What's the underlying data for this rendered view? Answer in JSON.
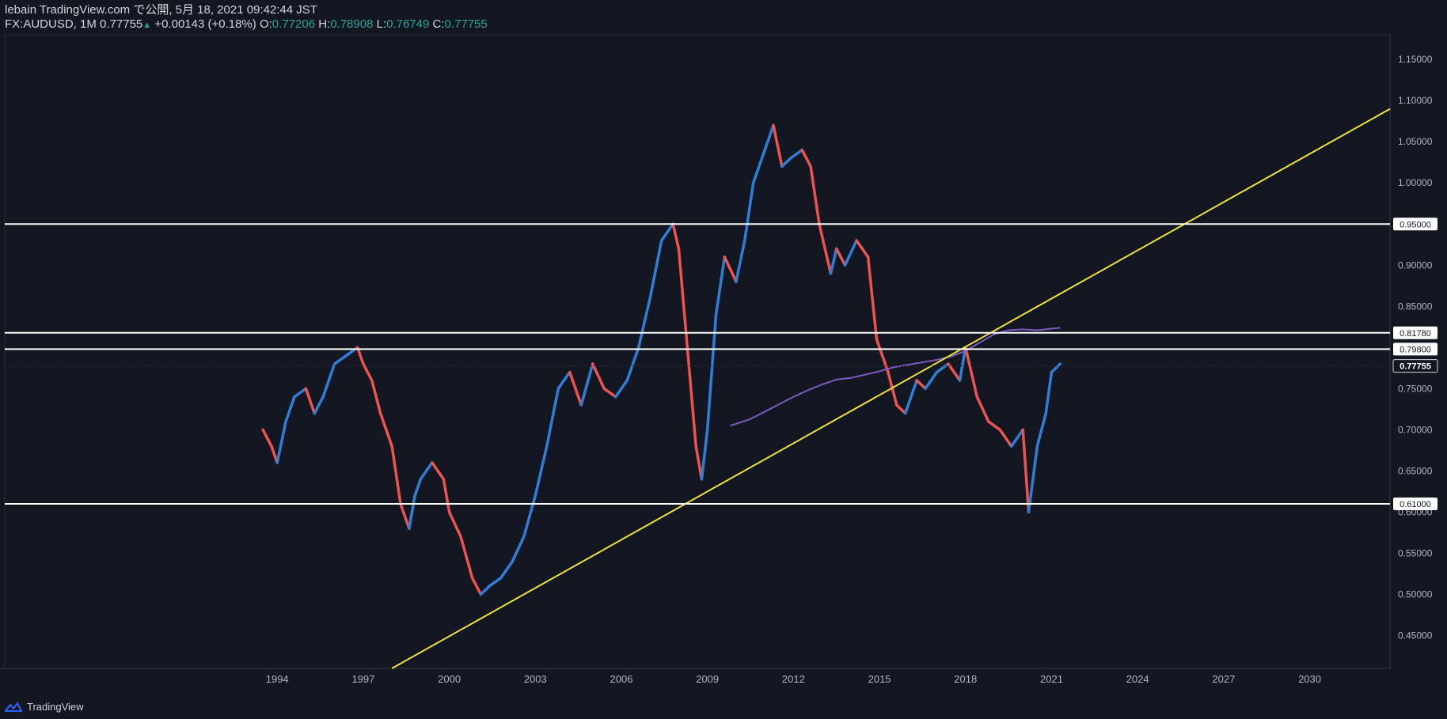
{
  "header": {
    "line1": "lebain TradingView.com で公開, 5月 18, 2021 09:42:44 JST",
    "symbol": "FX:AUDUSD, 1M",
    "last": "0.77755",
    "change_arrow": "▲",
    "change": "+0.00143 (+0.18%)",
    "o_label": "O:",
    "o_value": "0.77206",
    "h_label": "H:",
    "h_value": "0.78908",
    "l_label": "L:",
    "l_value": "0.76749",
    "c_label": "C:",
    "c_value": "0.77755"
  },
  "footer": {
    "brand": "TradingView"
  },
  "colors": {
    "bg": "#131722",
    "up": "#2f7fd6",
    "down": "#ef5350",
    "trend": "#f2e33a",
    "ma": "#7e57c2",
    "level": "#ffffff",
    "text": "#b2b5be"
  },
  "chart_data": {
    "type": "line",
    "title": "",
    "ylim": [
      0.41,
      1.18
    ],
    "xlim": [
      1984.5,
      2032.8
    ],
    "y_ticks": [
      "1.15000",
      "1.10000",
      "1.05000",
      "1.00000",
      "0.95000",
      "0.90000",
      "0.85000",
      "0.80000",
      "0.75000",
      "0.70000",
      "0.65000",
      "0.60000",
      "0.55000",
      "0.50000",
      "0.45000"
    ],
    "x_ticks": [
      "1994",
      "1997",
      "2000",
      "2003",
      "2006",
      "2009",
      "2012",
      "2015",
      "2018",
      "2021",
      "2024",
      "2027",
      "2030"
    ],
    "price_levels": [
      {
        "label": "0.95000",
        "value": 0.95
      },
      {
        "label": "0.81780",
        "value": 0.8178
      },
      {
        "label": "0.79800",
        "value": 0.798
      },
      {
        "label": "0.61000",
        "value": 0.61
      }
    ],
    "last_price": {
      "label": "0.77755",
      "value": 0.77755
    },
    "trendline": {
      "x": [
        1998.0,
        2032.8
      ],
      "y": [
        0.41,
        1.09
      ]
    },
    "series": [
      {
        "type": "close",
        "x": [
          1993.5,
          1993.8,
          1994.0,
          1994.3,
          1994.6,
          1995.0,
          1995.3,
          1995.6,
          1996.0,
          1996.4,
          1996.8,
          1997.0,
          1997.3,
          1997.6,
          1998.0,
          1998.3,
          1998.6,
          1998.8,
          1999.0,
          1999.4,
          1999.8,
          2000.0,
          2000.4,
          2000.8,
          2001.1,
          2001.4,
          2001.8,
          2002.2,
          2002.6,
          2003.0,
          2003.4,
          2003.8,
          2004.2,
          2004.6,
          2005.0,
          2005.4,
          2005.8,
          2006.2,
          2006.6,
          2007.0,
          2007.4,
          2007.8,
          2008.0,
          2008.3,
          2008.6,
          2008.8,
          2009.0,
          2009.3,
          2009.6,
          2010.0,
          2010.3,
          2010.6,
          2011.0,
          2011.3,
          2011.6,
          2011.9,
          2012.3,
          2012.6,
          2012.9,
          2013.3,
          2013.5,
          2013.8,
          2014.2,
          2014.6,
          2014.9,
          2015.3,
          2015.6,
          2015.9,
          2016.3,
          2016.6,
          2017.0,
          2017.4,
          2017.8,
          2018.0,
          2018.4,
          2018.8,
          2019.2,
          2019.6,
          2020.0,
          2020.2,
          2020.5,
          2020.8,
          2021.0,
          2021.3
        ],
        "values": [
          0.7,
          0.68,
          0.66,
          0.71,
          0.74,
          0.75,
          0.72,
          0.74,
          0.78,
          0.79,
          0.8,
          0.78,
          0.76,
          0.72,
          0.68,
          0.61,
          0.58,
          0.62,
          0.64,
          0.66,
          0.64,
          0.6,
          0.57,
          0.52,
          0.5,
          0.51,
          0.52,
          0.54,
          0.57,
          0.62,
          0.68,
          0.75,
          0.77,
          0.73,
          0.78,
          0.75,
          0.74,
          0.76,
          0.8,
          0.86,
          0.93,
          0.95,
          0.92,
          0.8,
          0.68,
          0.64,
          0.7,
          0.84,
          0.91,
          0.88,
          0.93,
          1.0,
          1.04,
          1.07,
          1.02,
          1.03,
          1.04,
          1.02,
          0.95,
          0.89,
          0.92,
          0.9,
          0.93,
          0.91,
          0.81,
          0.77,
          0.73,
          0.72,
          0.76,
          0.75,
          0.77,
          0.78,
          0.76,
          0.8,
          0.74,
          0.71,
          0.7,
          0.68,
          0.7,
          0.6,
          0.68,
          0.72,
          0.77,
          0.78
        ]
      },
      {
        "type": "ma",
        "x": [
          2009.8,
          2010.5,
          2011.0,
          2011.5,
          2012.0,
          2012.5,
          2013.0,
          2013.5,
          2014.0,
          2014.5,
          2015.0,
          2015.5,
          2016.0,
          2016.5,
          2017.0,
          2017.5,
          2018.0,
          2018.5,
          2019.0,
          2019.5,
          2020.0,
          2020.5,
          2021.3
        ],
        "values": [
          0.705,
          0.713,
          0.722,
          0.731,
          0.74,
          0.748,
          0.755,
          0.761,
          0.763,
          0.767,
          0.771,
          0.776,
          0.779,
          0.782,
          0.785,
          0.789,
          0.796,
          0.806,
          0.816,
          0.821,
          0.822,
          0.821,
          0.824
        ]
      }
    ]
  }
}
